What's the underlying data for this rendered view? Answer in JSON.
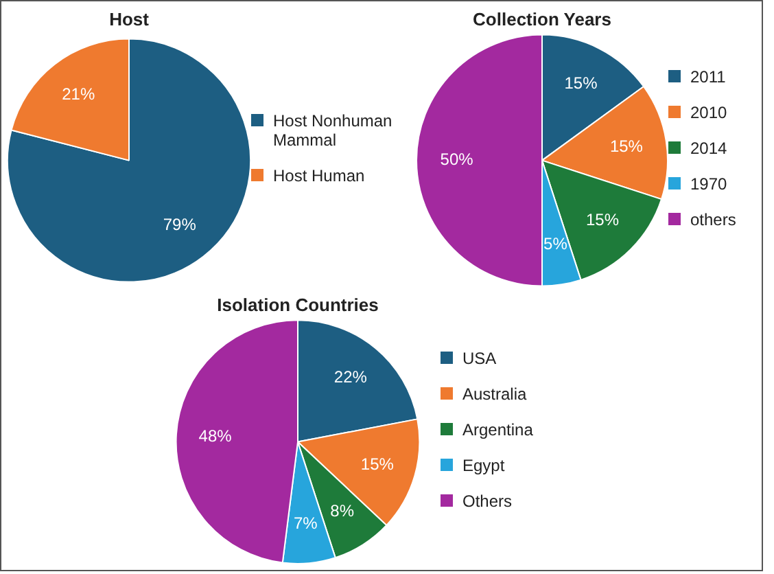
{
  "chart_data": [
    {
      "type": "pie",
      "title": "Host",
      "categories": [
        "Host Nonhuman Mammal",
        "Host Human"
      ],
      "values": [
        79,
        21
      ],
      "colors": [
        "#1d5e82",
        "#ef7a2f"
      ],
      "value_labels": [
        "79%",
        "21%"
      ],
      "legend": "right"
    },
    {
      "type": "pie",
      "title": "Collection Years",
      "categories": [
        "2011",
        "2010",
        "2014",
        "1970",
        "others"
      ],
      "values": [
        15,
        15,
        15,
        5,
        50
      ],
      "colors": [
        "#1d5e82",
        "#ef7a2f",
        "#1e7b3a",
        "#27a5dc",
        "#a3299f"
      ],
      "value_labels": [
        "15%",
        "15%",
        "15%",
        "5%",
        "50%"
      ],
      "legend": "right"
    },
    {
      "type": "pie",
      "title": "Isolation Countries",
      "categories": [
        "USA",
        "Australia",
        "Argentina",
        "Egypt",
        "Others"
      ],
      "values": [
        22,
        15,
        8,
        7,
        48
      ],
      "colors": [
        "#1d5e82",
        "#ef7a2f",
        "#1e7b3a",
        "#27a5dc",
        "#a3299f"
      ],
      "value_labels": [
        "22%",
        "15%",
        "8%",
        "7%",
        "48%"
      ],
      "legend": "right"
    }
  ]
}
